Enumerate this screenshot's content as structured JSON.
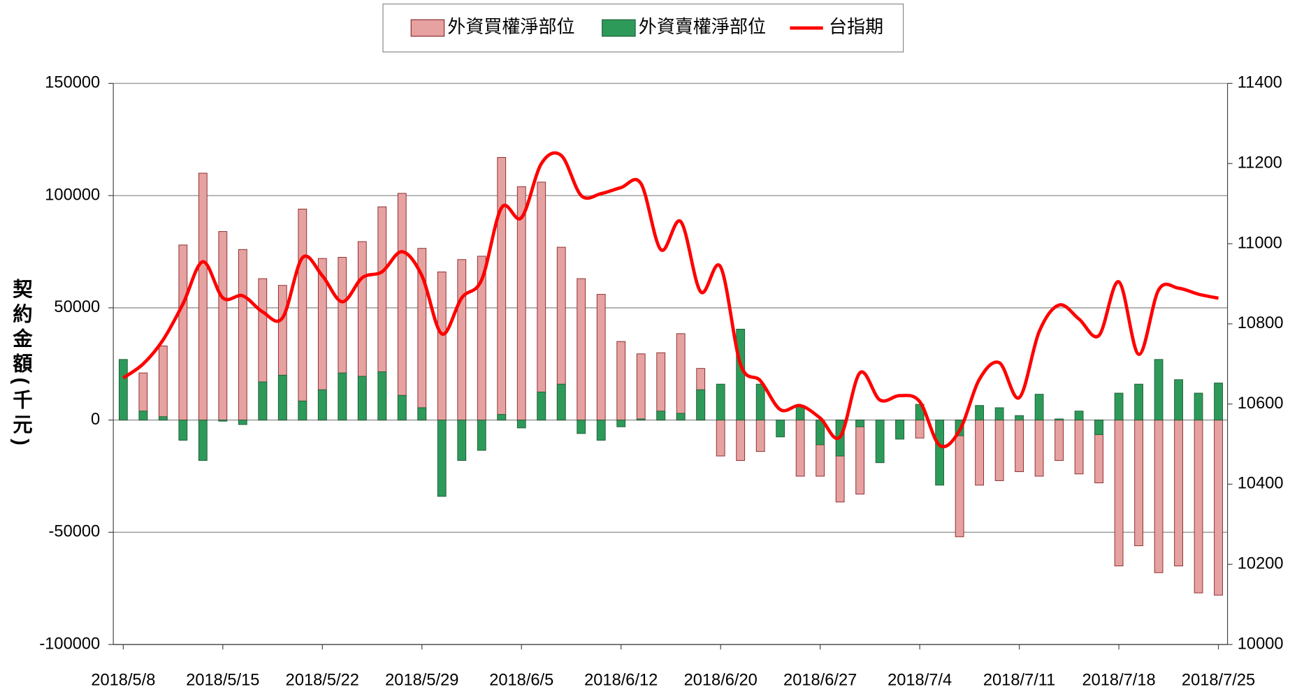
{
  "chart_data": {
    "type": "bar",
    "y_axis_label": "契約金額(千元)",
    "categories": [
      "2018/5/8",
      null,
      null,
      null,
      null,
      "2018/5/15",
      null,
      null,
      null,
      null,
      "2018/5/22",
      null,
      null,
      null,
      null,
      "2018/5/29",
      null,
      null,
      null,
      null,
      "2018/6/5",
      null,
      null,
      null,
      null,
      "2018/6/12",
      null,
      null,
      null,
      null,
      "2018/6/20",
      null,
      null,
      null,
      null,
      "2018/6/27",
      null,
      null,
      null,
      null,
      "2018/7/4",
      null,
      null,
      null,
      null,
      "2018/7/11",
      null,
      null,
      null,
      null,
      "2018/7/18",
      null,
      null,
      null,
      null,
      "2018/7/25"
    ],
    "series": [
      {
        "name": "外資買權淨部位",
        "type": "bar",
        "color": "#e6a1a1",
        "border": "#8b2a2a",
        "values": [
          0,
          21000,
          33000,
          78000,
          110000,
          84000,
          76000,
          63000,
          60000,
          94000,
          72000,
          72500,
          79500,
          95000,
          101000,
          76500,
          66000,
          71500,
          73000,
          117000,
          104000,
          106000,
          77000,
          63000,
          56000,
          35000,
          29500,
          30000,
          38500,
          23000,
          -16000,
          -18000,
          -14000,
          0,
          -25000,
          -25000,
          -36500,
          -33000,
          0,
          -8000,
          -8000,
          0,
          -52000,
          -29000,
          -27000,
          -23000,
          -25000,
          -18000,
          -24000,
          -28000,
          -65000,
          -56000,
          -68000,
          -65000,
          -77000,
          -78000
        ]
      },
      {
        "name": "外資賣權淨部位",
        "type": "bar",
        "color": "#2e9a5a",
        "border": "#1d5e36",
        "values": [
          27000,
          4000,
          1500,
          -9000,
          -18000,
          -500,
          -2000,
          17000,
          20000,
          8500,
          13500,
          21000,
          19500,
          21500,
          11000,
          5500,
          -34000,
          -18000,
          -13500,
          2500,
          -3500,
          12500,
          16000,
          -6000,
          -9000,
          -3000,
          500,
          4000,
          3000,
          13500,
          16000,
          40500,
          16000,
          -7500,
          6500,
          -11000,
          -16000,
          -3000,
          -19000,
          -8500,
          7000,
          -29000,
          -7000,
          6500,
          5500,
          2000,
          11500,
          500,
          4000,
          -6500,
          12000,
          16000,
          27000,
          18000,
          12000,
          16500
        ]
      },
      {
        "name": "台指期",
        "type": "line",
        "axis": "y2",
        "color": "#ff0000",
        "values": [
          10665,
          10700,
          10760,
          10850,
          10955,
          10865,
          10870,
          10830,
          10815,
          10965,
          10920,
          10855,
          10915,
          10930,
          10980,
          10920,
          10775,
          10865,
          10910,
          11090,
          11065,
          11200,
          11220,
          11120,
          11125,
          11140,
          11150,
          10985,
          11055,
          10880,
          10942,
          10699,
          10658,
          10586,
          10596,
          10565,
          10518,
          10678,
          10610,
          10621,
          10606,
          10497,
          10534,
          10662,
          10703,
          10616,
          10781,
          10847,
          10812,
          10771,
          10905,
          10724,
          10885,
          10889,
          10874,
          10864
        ]
      }
    ],
    "ylim": [
      -100000,
      150000
    ],
    "yticks": [
      -100000,
      -50000,
      0,
      50000,
      100000,
      150000
    ],
    "y2lim": [
      10000,
      11400
    ],
    "y2ticks": [
      10000,
      10200,
      10400,
      10600,
      10800,
      11000,
      11200,
      11400
    ],
    "grid": true,
    "legend": "top"
  }
}
